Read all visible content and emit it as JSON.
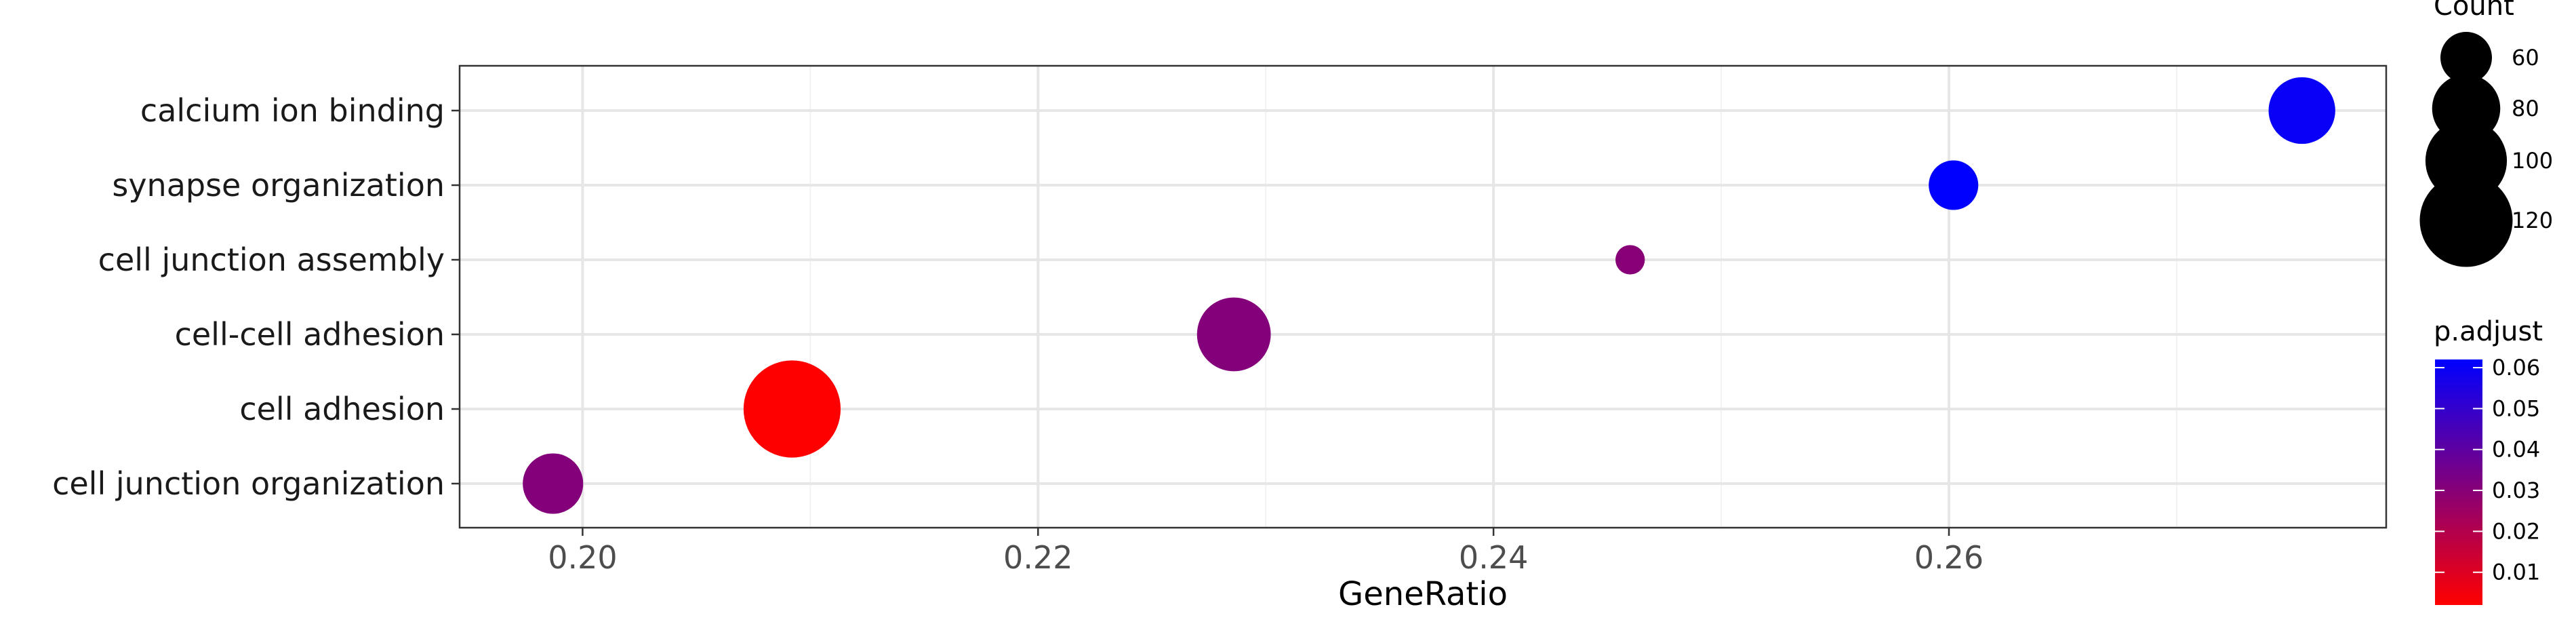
{
  "chart_data": {
    "type": "scatter",
    "title": "",
    "xlabel": "GeneRatio",
    "ylabel": "",
    "xlim": [
      0.1946,
      0.2792
    ],
    "x_ticks": [
      "0.20",
      "0.22",
      "0.24",
      "0.26"
    ],
    "x_tick_values": [
      0.2,
      0.22,
      0.24,
      0.26
    ],
    "grid": true,
    "categories": [
      "calcium ion binding",
      "synapse organization",
      "cell junction assembly",
      "cell-cell adhesion",
      "cell adhesion",
      "cell junction organization"
    ],
    "points": [
      {
        "category": "calcium ion binding",
        "x": 0.2755,
        "count": 78,
        "p_adjust": 0.06
      },
      {
        "category": "synapse organization",
        "x": 0.2602,
        "count": 58,
        "p_adjust": 0.062
      },
      {
        "category": "cell junction assembly",
        "x": 0.246,
        "count": 42,
        "p_adjust": 0.03
      },
      {
        "category": "cell-cell adhesion",
        "x": 0.2286,
        "count": 88,
        "p_adjust": 0.031
      },
      {
        "category": "cell adhesion",
        "x": 0.2092,
        "count": 128,
        "p_adjust": 0.002
      },
      {
        "category": "cell junction organization",
        "x": 0.1987,
        "count": 70,
        "p_adjust": 0.031
      }
    ],
    "legend_size": {
      "title": "Count",
      "labels": [
        "60",
        "80",
        "100",
        "120"
      ],
      "values": [
        60,
        80,
        100,
        120
      ]
    },
    "legend_color": {
      "title": "p.adjust",
      "labels": [
        "0.06",
        "0.05",
        "0.04",
        "0.03",
        "0.02",
        "0.01"
      ],
      "values": [
        0.06,
        0.05,
        0.04,
        0.03,
        0.02,
        0.01
      ],
      "range": [
        0.002,
        0.062
      ],
      "low_color": "#FF0000",
      "high_color": "#0000FF"
    },
    "legend_placement": "right"
  }
}
